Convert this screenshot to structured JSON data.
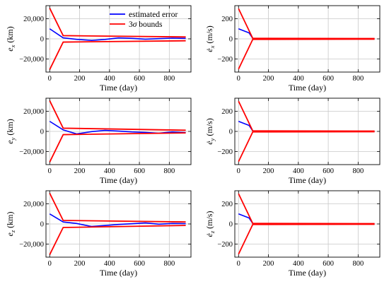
{
  "chart_data": [
    {
      "type": "line",
      "ylabel": {
        "base": "e",
        "dot": false,
        "sub": "x",
        "unit": "(km)"
      },
      "xlabel": "Time (day)",
      "xlim": [
        -25,
        945
      ],
      "ylim": [
        -33000,
        33000
      ],
      "xticks": [
        0,
        200,
        400,
        600,
        800
      ],
      "yticks": [
        -20000,
        0,
        20000
      ],
      "ytick_labels": [
        "−20,000",
        "0",
        "20,000"
      ],
      "legend": {
        "placement": "top-center",
        "entries": [
          {
            "label": "estimated error",
            "color": "#0000ff"
          },
          {
            "label_main": "3",
            "label_sym": "σ",
            "label_rest": " bounds",
            "color": "#ff0000"
          }
        ]
      },
      "series": [
        {
          "color": "#0000ff",
          "points": [
            [
              0,
              10000
            ],
            [
              90,
              1000
            ],
            [
              180,
              -500
            ],
            [
              280,
              -1500
            ],
            [
              370,
              -600
            ],
            [
              460,
              900
            ],
            [
              550,
              500
            ],
            [
              640,
              -300
            ],
            [
              730,
              200
            ],
            [
              820,
              700
            ],
            [
              910,
              500
            ]
          ]
        },
        {
          "color": "#ff0000",
          "points": [
            [
              0,
              30500
            ],
            [
              90,
              3200
            ],
            [
              910,
              1900
            ]
          ]
        },
        {
          "color": "#ff0000",
          "points": [
            [
              0,
              -30500
            ],
            [
              90,
              -3200
            ],
            [
              910,
              -1900
            ]
          ]
        }
      ]
    },
    {
      "type": "line",
      "ylabel": {
        "base": "e",
        "dot": true,
        "sub": "x",
        "unit": "(m/s)"
      },
      "xlabel": "Time (day)",
      "xlim": [
        -25,
        945
      ],
      "ylim": [
        -330,
        330
      ],
      "xticks": [
        0,
        200,
        400,
        600,
        800
      ],
      "yticks": [
        -200,
        0,
        200
      ],
      "ytick_labels": [
        "−200",
        "0",
        "200"
      ],
      "series": [
        {
          "color": "#0000ff",
          "points": [
            [
              0,
              100
            ],
            [
              70,
              60
            ],
            [
              95,
              5
            ],
            [
              120,
              0
            ],
            [
              910,
              0
            ]
          ]
        },
        {
          "color": "#ff0000",
          "points": [
            [
              0,
              300
            ],
            [
              95,
              5
            ],
            [
              910,
              3
            ]
          ]
        },
        {
          "color": "#ff0000",
          "points": [
            [
              0,
              -300
            ],
            [
              95,
              -5
            ],
            [
              910,
              -3
            ]
          ]
        }
      ]
    },
    {
      "type": "line",
      "ylabel": {
        "base": "e",
        "dot": false,
        "sub": "y",
        "unit": "(km)"
      },
      "xlabel": "Time (day)",
      "xlim": [
        -25,
        945
      ],
      "ylim": [
        -33000,
        33000
      ],
      "xticks": [
        0,
        200,
        400,
        600,
        800
      ],
      "yticks": [
        -20000,
        0,
        20000
      ],
      "ytick_labels": [
        "−20,000",
        "0",
        "20,000"
      ],
      "series": [
        {
          "color": "#0000ff",
          "points": [
            [
              0,
              10000
            ],
            [
              90,
              1500
            ],
            [
              180,
              -2500
            ],
            [
              280,
              -200
            ],
            [
              370,
              1000
            ],
            [
              460,
              300
            ],
            [
              550,
              -500
            ],
            [
              640,
              -1000
            ],
            [
              730,
              -1800
            ],
            [
              820,
              -500
            ],
            [
              910,
              -1200
            ]
          ]
        },
        {
          "color": "#ff0000",
          "points": [
            [
              0,
              30500
            ],
            [
              90,
              3200
            ],
            [
              910,
              1200
            ]
          ]
        },
        {
          "color": "#ff0000",
          "points": [
            [
              0,
              -30500
            ],
            [
              90,
              -3200
            ],
            [
              910,
              -1500
            ]
          ]
        }
      ]
    },
    {
      "type": "line",
      "ylabel": {
        "base": "e",
        "dot": true,
        "sub": "y",
        "unit": "(m/s)"
      },
      "xlabel": "Time (day)",
      "xlim": [
        -25,
        945
      ],
      "ylim": [
        -330,
        330
      ],
      "xticks": [
        0,
        200,
        400,
        600,
        800
      ],
      "yticks": [
        -200,
        0,
        200
      ],
      "ytick_labels": [
        "−200",
        "0",
        "200"
      ],
      "series": [
        {
          "color": "#0000ff",
          "points": [
            [
              0,
              100
            ],
            [
              70,
              60
            ],
            [
              95,
              5
            ],
            [
              120,
              0
            ],
            [
              910,
              0
            ]
          ]
        },
        {
          "color": "#ff0000",
          "points": [
            [
              0,
              300
            ],
            [
              95,
              5
            ],
            [
              910,
              3
            ]
          ]
        },
        {
          "color": "#ff0000",
          "points": [
            [
              0,
              -300
            ],
            [
              95,
              -5
            ],
            [
              910,
              -3
            ]
          ]
        }
      ]
    },
    {
      "type": "line",
      "ylabel": {
        "base": "e",
        "dot": false,
        "sub": "z",
        "unit": "(km)"
      },
      "xlabel": "Time (day)",
      "xlim": [
        -25,
        945
      ],
      "ylim": [
        -33000,
        33000
      ],
      "xticks": [
        0,
        200,
        400,
        600,
        800
      ],
      "yticks": [
        -20000,
        0,
        20000
      ],
      "ytick_labels": [
        "−20,000",
        "0",
        "20,000"
      ],
      "series": [
        {
          "color": "#0000ff",
          "points": [
            [
              0,
              10000
            ],
            [
              90,
              2000
            ],
            [
              180,
              500
            ],
            [
              280,
              -2500
            ],
            [
              370,
              -1500
            ],
            [
              460,
              -500
            ],
            [
              550,
              200
            ],
            [
              640,
              1000
            ],
            [
              730,
              -200
            ],
            [
              820,
              500
            ],
            [
              910,
              300
            ]
          ]
        },
        {
          "color": "#ff0000",
          "points": [
            [
              0,
              30500
            ],
            [
              90,
              3500
            ],
            [
              910,
              2000
            ]
          ]
        },
        {
          "color": "#ff0000",
          "points": [
            [
              0,
              -30500
            ],
            [
              90,
              -3500
            ],
            [
              910,
              -1500
            ]
          ]
        }
      ]
    },
    {
      "type": "line",
      "ylabel": {
        "base": "e",
        "dot": true,
        "sub": "z",
        "unit": "(m/s)"
      },
      "xlabel": "Time (day)",
      "xlim": [
        -25,
        945
      ],
      "ylim": [
        -330,
        330
      ],
      "xticks": [
        0,
        200,
        400,
        600,
        800
      ],
      "yticks": [
        -200,
        0,
        200
      ],
      "ytick_labels": [
        "−200",
        "0",
        "200"
      ],
      "series": [
        {
          "color": "#0000ff",
          "points": [
            [
              0,
              100
            ],
            [
              70,
              60
            ],
            [
              95,
              5
            ],
            [
              120,
              0
            ],
            [
              910,
              0
            ]
          ]
        },
        {
          "color": "#ff0000",
          "points": [
            [
              0,
              300
            ],
            [
              95,
              5
            ],
            [
              910,
              3
            ]
          ]
        },
        {
          "color": "#ff0000",
          "points": [
            [
              0,
              -300
            ],
            [
              95,
              -5
            ],
            [
              910,
              -3
            ]
          ]
        }
      ]
    }
  ]
}
